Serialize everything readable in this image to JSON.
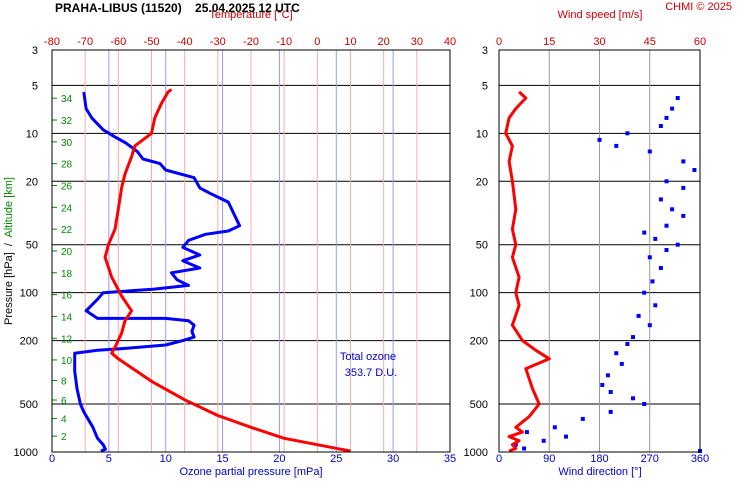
{
  "header": {
    "station_line": "PRAHA-LIBUS (11520)    25.04.2025 12 UTC",
    "credit": "CHMI © 2025"
  },
  "left_panel": {
    "ylabel_pressure": "Pressure [hPa]",
    "ylabel_sep": "  /  ",
    "ylabel_altitude": "Altitude [km]",
    "xlabel_bottom": "Ozone partial pressure [mPa]",
    "xlabel_top": "Temperature [°C]",
    "ozone_ticks": [
      "0",
      "5",
      "10",
      "15",
      "20",
      "25",
      "30",
      "35"
    ],
    "temp_ticks": [
      "-80",
      "-70",
      "-60",
      "-50",
      "-40",
      "-30",
      "-20",
      "-10",
      "0",
      "10",
      "20",
      "30",
      "40"
    ],
    "total_ozone_title": "Total ozone",
    "total_ozone_value": "353.7 D.U."
  },
  "right_panel": {
    "xlabel_bottom": "Wind direction [°]",
    "xlabel_top": "Wind speed [m/s]",
    "dir_ticks": [
      "0",
      "90",
      "180",
      "270",
      "360"
    ],
    "speed_ticks": [
      "0",
      "15",
      "30",
      "45",
      "60"
    ]
  },
  "pressure_ticks": [
    "3",
    "5",
    "10",
    "20",
    "50",
    "100",
    "200",
    "500",
    "1000"
  ],
  "altitude_ticks": [
    "2",
    "4",
    "6",
    "8",
    "10",
    "12",
    "14",
    "16",
    "18",
    "20",
    "22",
    "24",
    "26",
    "28",
    "30",
    "32",
    "34"
  ],
  "colors": {
    "ozone": "#0000ff",
    "temperature": "#ff0000",
    "wind_direction": "#0000ff",
    "wind_speed": "#ff0000",
    "altitude_labels": "#008800",
    "grid_blue": "#9999ff",
    "grid_red": "#ffaaaa"
  },
  "chart_data": [
    {
      "type": "line",
      "panel": "ozone-temperature",
      "y_axis": {
        "label": "Pressure [hPa]",
        "scale": "log",
        "range": [
          1000,
          3
        ]
      },
      "x_bottom": {
        "label": "Ozone partial pressure [mPa]",
        "range": [
          0,
          35
        ]
      },
      "x_top": {
        "label": "Temperature [°C]",
        "range": [
          -80,
          40
        ]
      },
      "series": [
        {
          "name": "Ozone partial pressure",
          "axis": "x_bottom",
          "points": [
            [
              4.3,
              985
            ],
            [
              4.7,
              960
            ],
            [
              4.5,
              900
            ],
            [
              4.0,
              820
            ],
            [
              3.6,
              700
            ],
            [
              2.8,
              560
            ],
            [
              2.5,
              500
            ],
            [
              2.2,
              400
            ],
            [
              2.0,
              310
            ],
            [
              2.0,
              240
            ],
            [
              4.0,
              230
            ],
            [
              6.0,
              225
            ],
            [
              10.0,
              213
            ],
            [
              11.5,
              200
            ],
            [
              12.5,
              190
            ],
            [
              12.3,
              175
            ],
            [
              12.5,
              160
            ],
            [
              12.0,
              150
            ],
            [
              10.0,
              145
            ],
            [
              4.0,
              145
            ],
            [
              3.0,
              130
            ],
            [
              4.0,
              110
            ],
            [
              4.5,
              100
            ],
            [
              9.0,
              95
            ],
            [
              12.0,
              90
            ],
            [
              11.0,
              83
            ],
            [
              10.5,
              75
            ],
            [
              13.0,
              70
            ],
            [
              11.5,
              63
            ],
            [
              13.0,
              58
            ],
            [
              11.5,
              52
            ],
            [
              12.0,
              47
            ],
            [
              13.5,
              43
            ],
            [
              15.5,
              41
            ],
            [
              16.5,
              38
            ],
            [
              16.0,
              32
            ],
            [
              15.5,
              27
            ],
            [
              14.0,
              24
            ],
            [
              13.0,
              22
            ],
            [
              12.5,
              19
            ],
            [
              10.0,
              17
            ],
            [
              9.5,
              15.5
            ],
            [
              8.0,
              14.5
            ],
            [
              7.5,
              13
            ],
            [
              6.5,
              11.5
            ],
            [
              5.5,
              10.5
            ],
            [
              4.5,
              9.5
            ],
            [
              3.5,
              8
            ],
            [
              3.0,
              7
            ],
            [
              2.8,
              5.5
            ]
          ]
        },
        {
          "name": "Temperature",
          "axis": "x_top",
          "points": [
            [
              10,
              985
            ],
            [
              7,
              960
            ],
            [
              0,
              900
            ],
            [
              -10,
              820
            ],
            [
              -20,
              700
            ],
            [
              -30,
              590
            ],
            [
              -40,
              470
            ],
            [
              -50,
              360
            ],
            [
              -60,
              260
            ],
            [
              -62,
              240
            ],
            [
              -61,
              220
            ],
            [
              -59,
              180
            ],
            [
              -58,
              150
            ],
            [
              -56,
              130
            ],
            [
              -59,
              105
            ],
            [
              -62,
              80
            ],
            [
              -64,
              60
            ],
            [
              -63,
              50
            ],
            [
              -61,
              40
            ],
            [
              -60,
              30
            ],
            [
              -59,
              22
            ],
            [
              -58,
              18
            ],
            [
              -56,
              14
            ],
            [
              -55,
              12
            ],
            [
              -50,
              10
            ],
            [
              -49,
              8
            ],
            [
              -47,
              6.5
            ],
            [
              -45,
              5.5
            ],
            [
              -44,
              5.3
            ]
          ]
        }
      ]
    },
    {
      "type": "scatter",
      "panel": "wind",
      "y_axis": {
        "label": "Pressure [hPa]",
        "scale": "log",
        "range": [
          1000,
          3
        ]
      },
      "x_bottom": {
        "label": "Wind direction [°]",
        "range": [
          0,
          360
        ]
      },
      "x_top": {
        "label": "Wind speed [m/s]",
        "range": [
          0,
          60
        ]
      },
      "series": [
        {
          "name": "Wind direction",
          "axis": "x_bottom",
          "points": [
            [
              360,
              985
            ],
            [
              45,
              950
            ],
            [
              30,
              900
            ],
            [
              80,
              850
            ],
            [
              120,
              800
            ],
            [
              50,
              750
            ],
            [
              100,
              700
            ],
            [
              150,
              620
            ],
            [
              200,
              560
            ],
            [
              260,
              500
            ],
            [
              240,
              460
            ],
            [
              200,
              420
            ],
            [
              185,
              380
            ],
            [
              195,
              330
            ],
            [
              220,
              280
            ],
            [
              210,
              240
            ],
            [
              230,
              210
            ],
            [
              240,
              190
            ],
            [
              270,
              160
            ],
            [
              250,
              140
            ],
            [
              280,
              120
            ],
            [
              260,
              100
            ],
            [
              275,
              85
            ],
            [
              290,
              70
            ],
            [
              270,
              60
            ],
            [
              300,
              54
            ],
            [
              320,
              50
            ],
            [
              280,
              46
            ],
            [
              260,
              42
            ],
            [
              300,
              38
            ],
            [
              330,
              33
            ],
            [
              310,
              30
            ],
            [
              290,
              26
            ],
            [
              330,
              22
            ],
            [
              300,
              20
            ],
            [
              350,
              17
            ],
            [
              330,
              15
            ],
            [
              270,
              13
            ],
            [
              210,
              12
            ],
            [
              180,
              11
            ],
            [
              230,
              10
            ],
            [
              290,
              9
            ],
            [
              300,
              8
            ],
            [
              310,
              7
            ],
            [
              320,
              6
            ]
          ]
        },
        {
          "name": "Wind speed",
          "axis": "x_top",
          "points": [
            [
              3,
              985
            ],
            [
              5,
              950
            ],
            [
              4,
              900
            ],
            [
              6,
              850
            ],
            [
              3,
              800
            ],
            [
              7,
              750
            ],
            [
              5,
              700
            ],
            [
              9,
              600
            ],
            [
              12,
              500
            ],
            [
              10,
              400
            ],
            [
              8,
              300
            ],
            [
              15,
              260
            ],
            [
              11,
              230
            ],
            [
              7,
              200
            ],
            [
              4,
              160
            ],
            [
              6,
              120
            ],
            [
              5,
              100
            ],
            [
              6,
              80
            ],
            [
              4,
              60
            ],
            [
              5,
              50
            ],
            [
              4,
              40
            ],
            [
              5,
              30
            ],
            [
              4,
              20
            ],
            [
              3,
              15
            ],
            [
              4,
              12
            ],
            [
              2,
              10
            ],
            [
              3,
              8
            ],
            [
              5,
              7
            ],
            [
              8,
              6
            ],
            [
              6,
              5.5
            ]
          ]
        }
      ]
    }
  ]
}
